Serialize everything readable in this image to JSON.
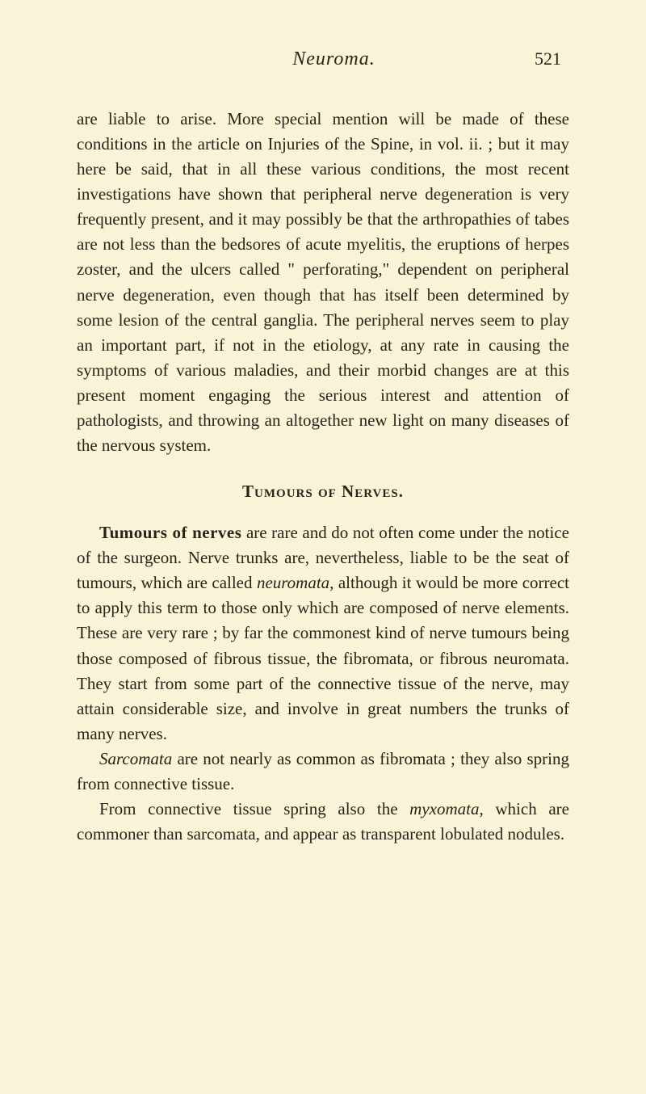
{
  "page": {
    "header_title": "Neuroma.",
    "page_number": "521"
  },
  "colors": {
    "background": "#f9f3d8",
    "text": "#2a2418"
  },
  "typography": {
    "body_font_family": "Georgia, 'Times New Roman', serif",
    "body_font_size": 21,
    "header_font_size": 24,
    "line_height": 1.48
  },
  "content": {
    "para1": "are liable to arise. More special mention will be made of these conditions in the article on Injuries of the Spine, in vol. ii. ; but it may here be said, that in all these various conditions, the most recent investigations have shown that peripheral nerve degeneration is very frequently present, and it may possibly be that the arthropathies of tabes are not less than the bedsores of acute myelitis, the eruptions of herpes zoster, and the ulcers called \" perforating,\" dependent on peripheral nerve degeneration, even though that has itself been determined by some lesion of the central ganglia. The peripheral nerves seem to play an important part, if not in the etiology, at any rate in causing the symptoms of various maladies, and their morbid changes are at this present moment engaging the serious interest and attention of pathologists, and throwing an altogether new light on many diseases of the nervous system.",
    "section_heading": "Tumours of Nerves.",
    "para2_bold": "Tumours of nerves",
    "para2_rest": " are rare and do not often come under the notice of the surgeon. Nerve trunks are, nevertheless, liable to be the seat of tumours, which are called ",
    "para2_italic1": "neuromata",
    "para2_part2": ", although it would be more correct to apply this term to those only which are composed of nerve elements. These are very rare ; by far the commonest kind of nerve tumours being those composed of fibrous tissue, the fibromata, or fibrous neuromata. They start from some part of the connective tissue of the nerve, may attain considerable size, and involve in great numbers the trunks of many nerves.",
    "para3_italic": "Sarcomata",
    "para3_rest": " are not nearly as common as fibromata ; they also spring from connective tissue.",
    "para4_part1": "From connective tissue spring also the ",
    "para4_italic": "myxomata",
    "para4_part2": ", which are commoner than sarcomata, and appear as transparent lobulated nodules."
  }
}
